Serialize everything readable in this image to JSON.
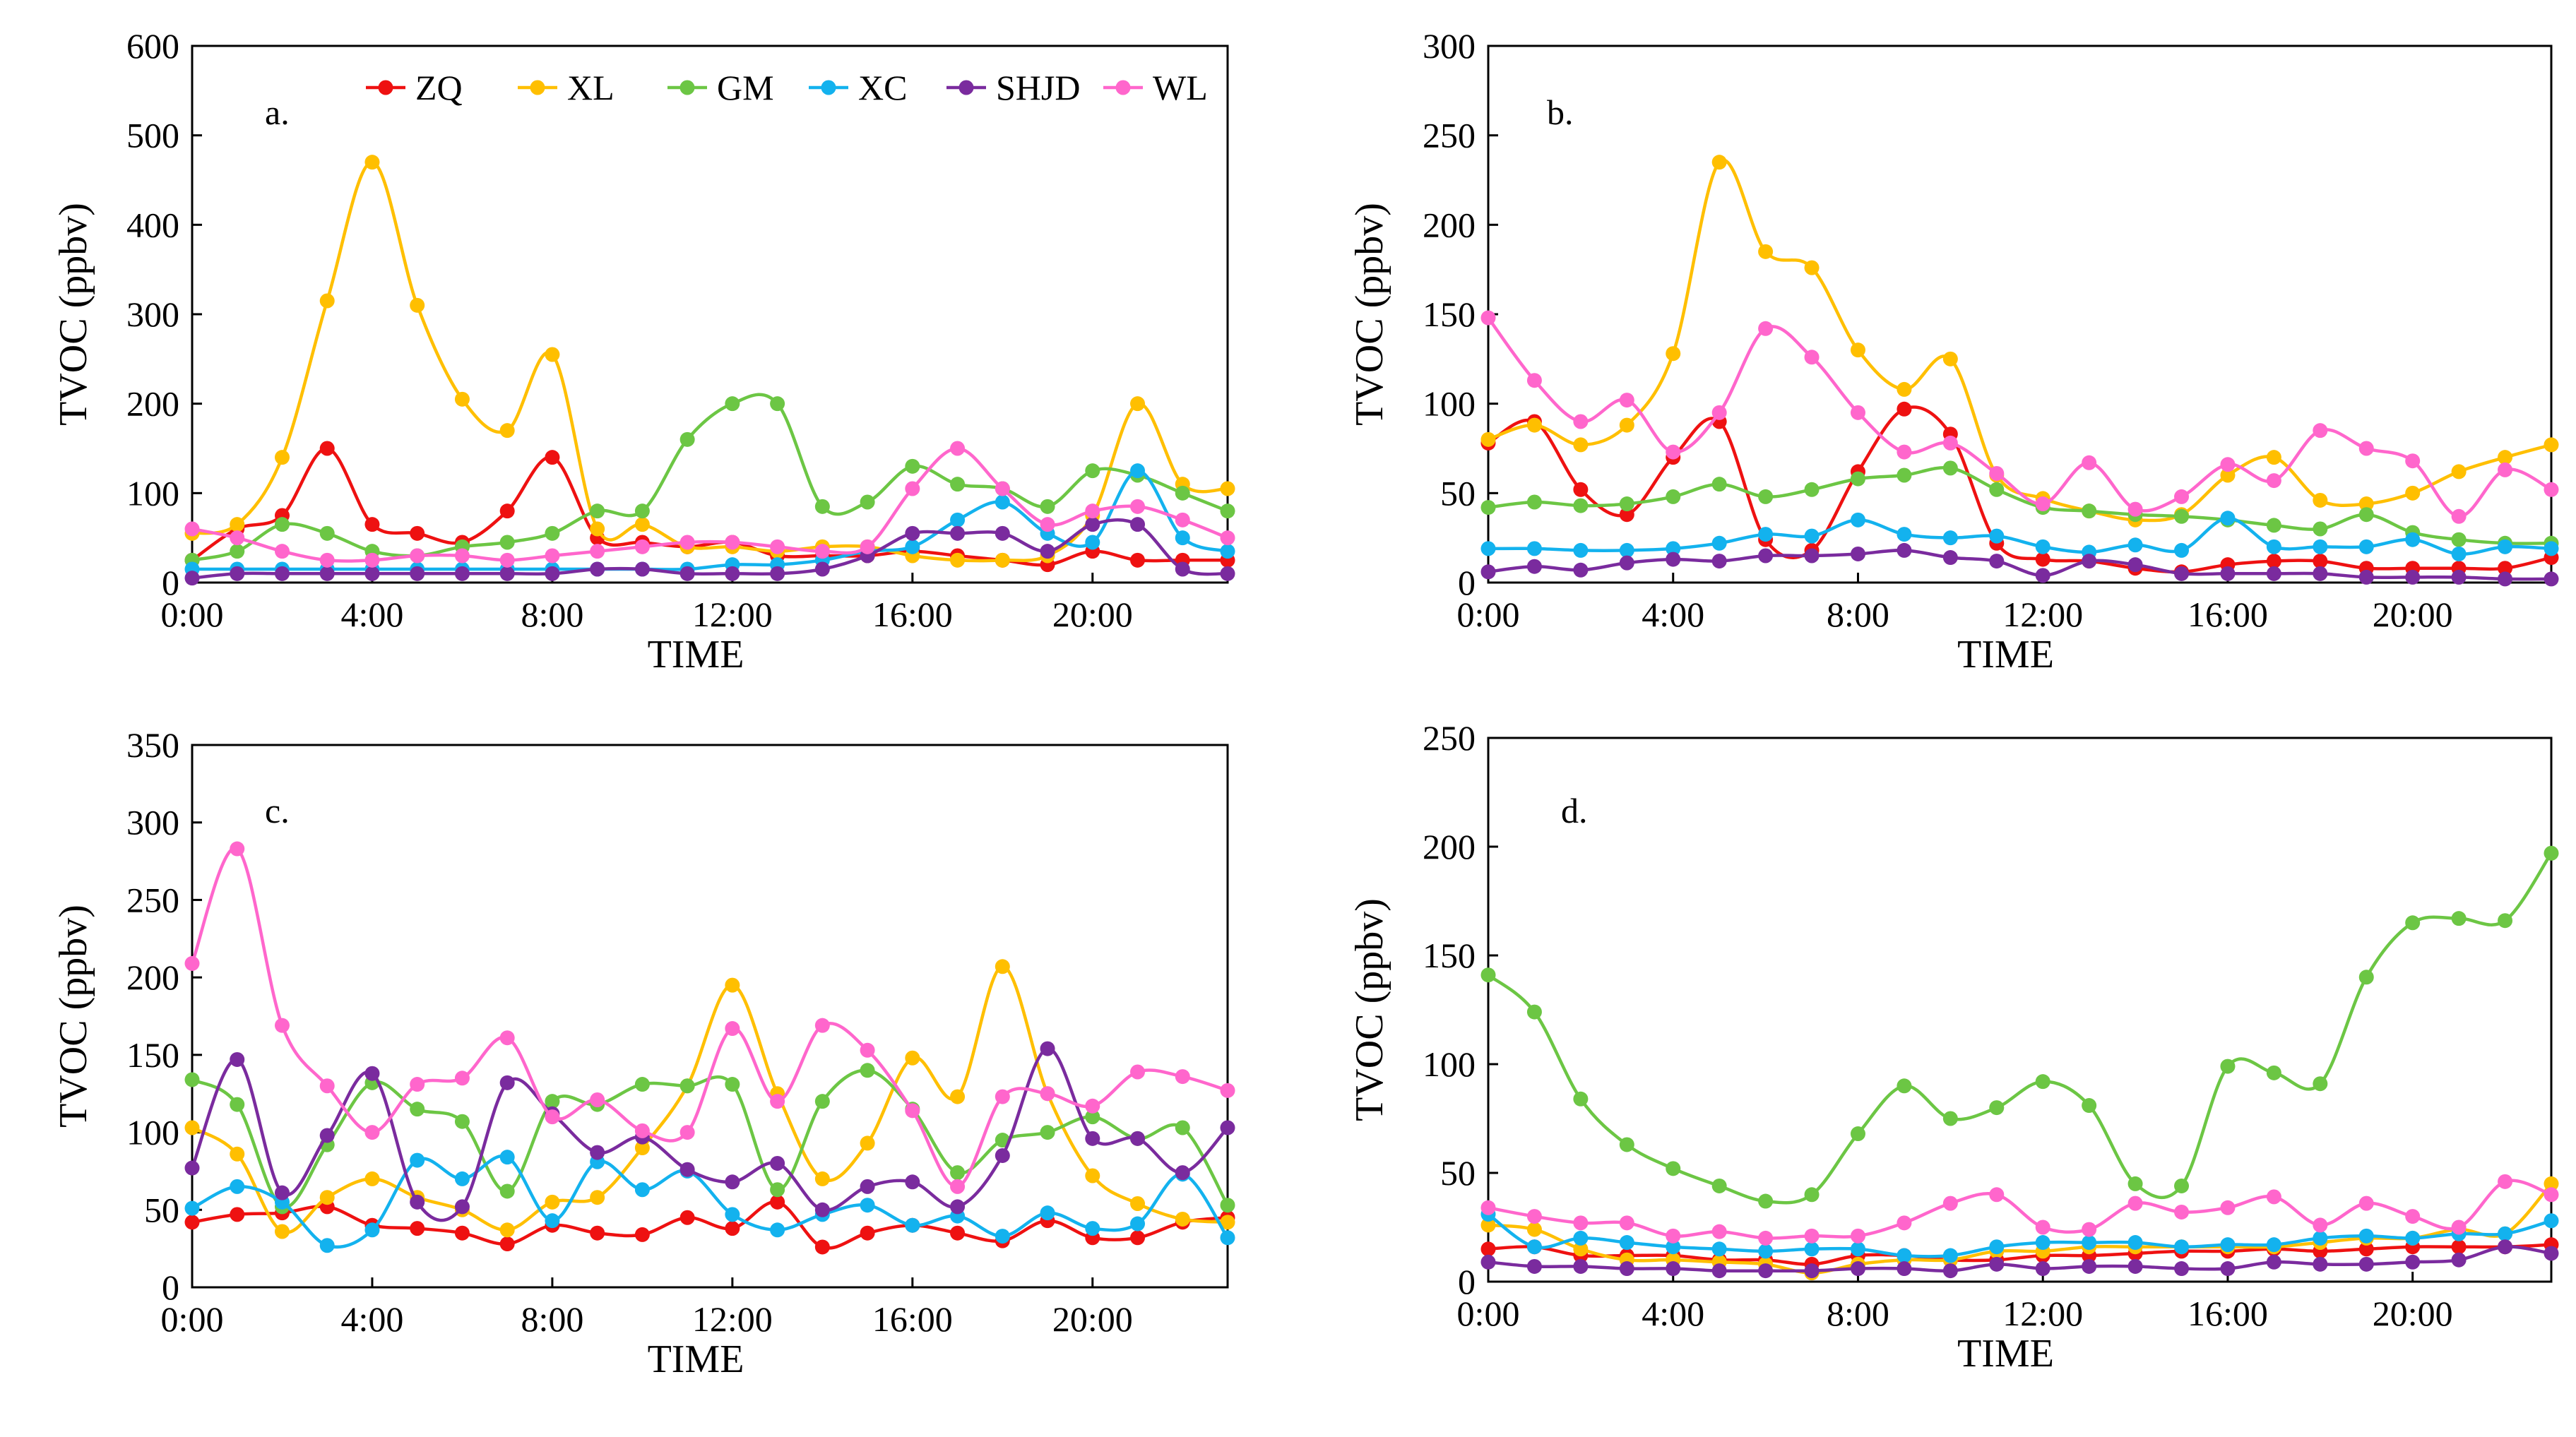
{
  "series_colors": {
    "ZQ": "#ee1111",
    "XL": "#ffbf00",
    "GM": "#6cc644",
    "XC": "#13b2ee",
    "SHJD": "#7a2b9e",
    "WL": "#ff66cc"
  },
  "legend": [
    "ZQ",
    "XL",
    "GM",
    "XC",
    "SHJD",
    "WL"
  ],
  "chart_data": [
    {
      "type": "line",
      "panel_label": "a.",
      "xlabel": "TIME",
      "ylabel": "TVOC (ppbv)",
      "xtick_labels": [
        "0:00",
        "4:00",
        "8:00",
        "12:00",
        "16:00",
        "20:00"
      ],
      "ylim": [
        0,
        600
      ],
      "yticks": [
        0,
        100,
        200,
        300,
        400,
        500,
        600
      ],
      "hours": [
        0,
        1,
        2,
        3,
        4,
        5,
        6,
        7,
        8,
        9,
        10,
        11,
        12,
        13,
        14,
        15,
        16,
        17,
        18,
        19,
        20,
        21,
        22,
        23
      ],
      "series": [
        {
          "name": "ZQ",
          "values": [
            25,
            60,
            75,
            150,
            65,
            55,
            45,
            80,
            140,
            50,
            45,
            40,
            45,
            30,
            30,
            30,
            35,
            30,
            25,
            20,
            35,
            25,
            25,
            25
          ]
        },
        {
          "name": "XL",
          "values": [
            55,
            65,
            140,
            315,
            470,
            310,
            205,
            170,
            255,
            60,
            65,
            40,
            40,
            35,
            40,
            40,
            30,
            25,
            25,
            30,
            75,
            200,
            110,
            105
          ]
        },
        {
          "name": "GM",
          "values": [
            25,
            35,
            65,
            55,
            35,
            30,
            40,
            45,
            55,
            80,
            80,
            160,
            200,
            200,
            85,
            90,
            130,
            110,
            105,
            85,
            125,
            120,
            100,
            80
          ]
        },
        {
          "name": "XC",
          "values": [
            15,
            15,
            15,
            15,
            15,
            15,
            15,
            15,
            15,
            15,
            15,
            15,
            20,
            20,
            25,
            35,
            40,
            70,
            90,
            55,
            45,
            125,
            50,
            35
          ]
        },
        {
          "name": "SHJD",
          "values": [
            5,
            10,
            10,
            10,
            10,
            10,
            10,
            10,
            10,
            15,
            15,
            10,
            10,
            10,
            15,
            30,
            55,
            55,
            55,
            35,
            65,
            65,
            15,
            10
          ]
        },
        {
          "name": "WL",
          "values": [
            60,
            50,
            35,
            25,
            25,
            30,
            30,
            25,
            30,
            35,
            40,
            45,
            45,
            40,
            35,
            40,
            105,
            150,
            105,
            65,
            80,
            85,
            70,
            50
          ]
        }
      ]
    },
    {
      "type": "line",
      "panel_label": "b.",
      "xlabel": "TIME",
      "ylabel": "TVOC (ppbv)",
      "xtick_labels": [
        "0:00",
        "4:00",
        "8:00",
        "12:00",
        "16:00",
        "20:00"
      ],
      "ylim": [
        0,
        300
      ],
      "yticks": [
        0,
        50,
        100,
        150,
        200,
        250,
        300
      ],
      "hours": [
        0,
        1,
        2,
        3,
        4,
        5,
        6,
        7,
        8,
        9,
        10,
        11,
        12,
        13,
        14,
        15,
        16,
        17,
        18,
        19,
        20,
        21,
        22,
        23
      ],
      "series": [
        {
          "name": "ZQ",
          "values": [
            78,
            90,
            52,
            38,
            70,
            90,
            24,
            18,
            62,
            97,
            83,
            22,
            13,
            12,
            8,
            6,
            10,
            12,
            12,
            8,
            8,
            8,
            8,
            14
          ]
        },
        {
          "name": "XL",
          "values": [
            80,
            88,
            77,
            88,
            128,
            235,
            185,
            176,
            130,
            108,
            125,
            60,
            47,
            40,
            35,
            38,
            60,
            70,
            46,
            44,
            50,
            62,
            70,
            77
          ]
        },
        {
          "name": "GM",
          "values": [
            42,
            45,
            43,
            44,
            48,
            55,
            48,
            52,
            58,
            60,
            64,
            52,
            42,
            40,
            38,
            37,
            35,
            32,
            30,
            38,
            28,
            24,
            22,
            22
          ]
        },
        {
          "name": "XC",
          "values": [
            19,
            19,
            18,
            18,
            19,
            22,
            27,
            26,
            35,
            27,
            25,
            26,
            20,
            17,
            21,
            18,
            36,
            20,
            20,
            20,
            24,
            16,
            20,
            19
          ]
        },
        {
          "name": "SHJD",
          "values": [
            6,
            9,
            7,
            11,
            13,
            12,
            15,
            15,
            16,
            18,
            14,
            12,
            4,
            12,
            10,
            5,
            5,
            5,
            5,
            3,
            3,
            3,
            2,
            2
          ]
        },
        {
          "name": "WL",
          "values": [
            148,
            113,
            90,
            102,
            73,
            95,
            142,
            126,
            95,
            73,
            78,
            61,
            44,
            67,
            41,
            48,
            66,
            57,
            85,
            75,
            68,
            37,
            63,
            52
          ]
        }
      ]
    },
    {
      "type": "line",
      "panel_label": "c.",
      "xlabel": "TIME",
      "ylabel": "TVOC (ppbv)",
      "xtick_labels": [
        "0:00",
        "4:00",
        "8:00",
        "12:00",
        "16:00",
        "20:00"
      ],
      "ylim": [
        0,
        350
      ],
      "yticks": [
        0,
        50,
        100,
        150,
        200,
        250,
        300,
        350
      ],
      "hours": [
        0,
        1,
        2,
        3,
        4,
        5,
        6,
        7,
        8,
        9,
        10,
        11,
        12,
        13,
        14,
        15,
        16,
        17,
        18,
        19,
        20,
        21,
        22,
        23
      ],
      "series": [
        {
          "name": "ZQ",
          "values": [
            42,
            47,
            48,
            52,
            40,
            38,
            35,
            28,
            40,
            35,
            34,
            45,
            38,
            55,
            26,
            35,
            40,
            35,
            30,
            43,
            32,
            32,
            42,
            45
          ]
        },
        {
          "name": "XL",
          "values": [
            103,
            86,
            36,
            58,
            70,
            58,
            50,
            37,
            55,
            58,
            90,
            130,
            195,
            125,
            70,
            93,
            148,
            123,
            207,
            125,
            72,
            54,
            44,
            42
          ]
        },
        {
          "name": "GM",
          "values": [
            134,
            118,
            52,
            92,
            132,
            115,
            107,
            62,
            120,
            118,
            131,
            130,
            131,
            63,
            120,
            140,
            115,
            74,
            95,
            100,
            110,
            96,
            103,
            53
          ]
        },
        {
          "name": "XC",
          "values": [
            51,
            65,
            55,
            27,
            37,
            82,
            70,
            84,
            43,
            81,
            63,
            75,
            47,
            37,
            47,
            53,
            40,
            46,
            33,
            48,
            38,
            41,
            73,
            32
          ]
        },
        {
          "name": "SHJD",
          "values": [
            77,
            147,
            61,
            98,
            138,
            55,
            52,
            132,
            112,
            87,
            97,
            76,
            68,
            80,
            50,
            65,
            68,
            52,
            85,
            154,
            96,
            96,
            74,
            103
          ]
        },
        {
          "name": "WL",
          "values": [
            209,
            283,
            169,
            130,
            100,
            131,
            135,
            161,
            110,
            121,
            101,
            100,
            167,
            120,
            169,
            153,
            114,
            65,
            123,
            125,
            117,
            139,
            136,
            127
          ]
        }
      ]
    },
    {
      "type": "line",
      "panel_label": "d.",
      "xlabel": "TIME",
      "ylabel": "TVOC (ppbv)",
      "xtick_labels": [
        "0:00",
        "4:00",
        "8:00",
        "12:00",
        "16:00",
        "20:00"
      ],
      "ylim": [
        0,
        250
      ],
      "yticks": [
        0,
        50,
        100,
        150,
        200,
        250
      ],
      "hours": [
        0,
        1,
        2,
        3,
        4,
        5,
        6,
        7,
        8,
        9,
        10,
        11,
        12,
        13,
        14,
        15,
        16,
        17,
        18,
        19,
        20,
        21,
        22,
        23
      ],
      "series": [
        {
          "name": "ZQ",
          "values": [
            15,
            16,
            12,
            12,
            12,
            10,
            10,
            8,
            12,
            12,
            10,
            10,
            12,
            12,
            13,
            14,
            14,
            15,
            14,
            15,
            16,
            16,
            16,
            17
          ]
        },
        {
          "name": "XL",
          "values": [
            26,
            24,
            15,
            10,
            10,
            9,
            8,
            4,
            8,
            10,
            10,
            14,
            14,
            16,
            16,
            16,
            16,
            16,
            18,
            20,
            20,
            24,
            22,
            45
          ]
        },
        {
          "name": "GM",
          "values": [
            141,
            124,
            84,
            63,
            52,
            44,
            37,
            40,
            68,
            90,
            75,
            80,
            92,
            81,
            45,
            44,
            99,
            96,
            91,
            140,
            165,
            167,
            166,
            197
          ]
        },
        {
          "name": "XC",
          "values": [
            31,
            16,
            20,
            18,
            16,
            15,
            14,
            15,
            15,
            12,
            12,
            16,
            18,
            18,
            18,
            16,
            17,
            17,
            20,
            21,
            20,
            22,
            22,
            28
          ]
        },
        {
          "name": "SHJD",
          "values": [
            9,
            7,
            7,
            6,
            6,
            5,
            5,
            5,
            6,
            6,
            5,
            8,
            6,
            7,
            7,
            6,
            6,
            9,
            8,
            8,
            9,
            10,
            16,
            13
          ]
        },
        {
          "name": "WL",
          "values": [
            34,
            30,
            27,
            27,
            21,
            23,
            20,
            21,
            21,
            27,
            36,
            40,
            25,
            24,
            36,
            32,
            34,
            39,
            26,
            36,
            30,
            25,
            46,
            40
          ]
        }
      ]
    }
  ]
}
